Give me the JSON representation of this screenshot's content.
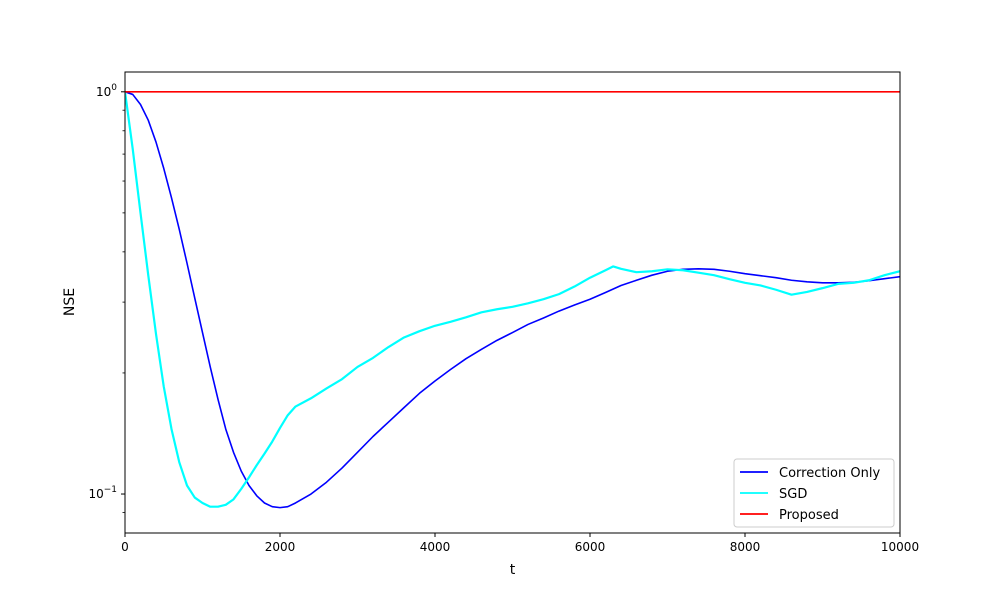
{
  "chart_data": {
    "type": "line",
    "xlabel": "t",
    "ylabel": "NSE",
    "xlim": [
      0,
      10000
    ],
    "ylim": [
      0.08,
      1.12
    ],
    "yscale": "log",
    "grid": false,
    "legend_position": "lower right",
    "x_ticks": [
      "0",
      "2000",
      "4000",
      "6000",
      "8000",
      "10000"
    ],
    "y_ticks": [
      {
        "value": 1,
        "base": "10",
        "exp": "0"
      },
      {
        "value": 0.1,
        "base": "10",
        "exp": "−1"
      }
    ],
    "series": [
      {
        "name": "Correction Only",
        "color": "#0000ff",
        "x": [
          0,
          100,
          200,
          300,
          400,
          500,
          600,
          700,
          800,
          900,
          1000,
          1100,
          1200,
          1300,
          1400,
          1500,
          1600,
          1700,
          1800,
          1900,
          2000,
          2100,
          2200,
          2400,
          2600,
          2800,
          3000,
          3200,
          3400,
          3600,
          3800,
          4000,
          4200,
          4400,
          4600,
          4800,
          5000,
          5200,
          5400,
          5600,
          5800,
          6000,
          6200,
          6400,
          6600,
          6800,
          7000,
          7200,
          7400,
          7600,
          7800,
          8000,
          8200,
          8400,
          8600,
          8800,
          9000,
          9200,
          9400,
          9600,
          9800,
          10000
        ],
        "y": [
          1.0,
          0.985,
          0.93,
          0.85,
          0.75,
          0.645,
          0.545,
          0.455,
          0.375,
          0.307,
          0.252,
          0.207,
          0.172,
          0.145,
          0.127,
          0.114,
          0.105,
          0.099,
          0.095,
          0.093,
          0.0925,
          0.093,
          0.095,
          0.1,
          0.107,
          0.116,
          0.127,
          0.139,
          0.151,
          0.164,
          0.178,
          0.191,
          0.204,
          0.217,
          0.229,
          0.241,
          0.252,
          0.264,
          0.274,
          0.285,
          0.295,
          0.305,
          0.317,
          0.33,
          0.34,
          0.35,
          0.358,
          0.362,
          0.363,
          0.362,
          0.358,
          0.353,
          0.349,
          0.345,
          0.34,
          0.337,
          0.335,
          0.335,
          0.336,
          0.339,
          0.343,
          0.347
        ]
      },
      {
        "name": "SGD",
        "color": "#00ffff",
        "x": [
          0,
          100,
          200,
          300,
          400,
          500,
          600,
          700,
          800,
          900,
          1000,
          1100,
          1200,
          1300,
          1400,
          1500,
          1600,
          1700,
          1800,
          1900,
          2000,
          2100,
          2200,
          2400,
          2600,
          2800,
          3000,
          3200,
          3400,
          3600,
          3800,
          4000,
          4200,
          4400,
          4600,
          4800,
          5000,
          5200,
          5400,
          5600,
          5800,
          6000,
          6200,
          6300,
          6400,
          6600,
          6800,
          7000,
          7200,
          7400,
          7600,
          7800,
          8000,
          8200,
          8400,
          8600,
          8800,
          9000,
          9200,
          9400,
          9600,
          9800,
          10000
        ],
        "y": [
          1.0,
          0.72,
          0.5,
          0.35,
          0.25,
          0.185,
          0.145,
          0.12,
          0.105,
          0.098,
          0.095,
          0.093,
          0.093,
          0.094,
          0.097,
          0.103,
          0.11,
          0.118,
          0.126,
          0.135,
          0.146,
          0.157,
          0.165,
          0.173,
          0.183,
          0.193,
          0.207,
          0.218,
          0.232,
          0.245,
          0.254,
          0.262,
          0.268,
          0.275,
          0.283,
          0.288,
          0.292,
          0.298,
          0.305,
          0.314,
          0.328,
          0.345,
          0.36,
          0.368,
          0.363,
          0.356,
          0.358,
          0.362,
          0.36,
          0.355,
          0.35,
          0.342,
          0.335,
          0.33,
          0.322,
          0.313,
          0.318,
          0.325,
          0.333,
          0.335,
          0.34,
          0.35,
          0.358
        ]
      },
      {
        "name": "Proposed",
        "color": "#ff0000",
        "x": [
          0,
          10000
        ],
        "y": [
          1.0,
          1.0
        ]
      }
    ]
  }
}
